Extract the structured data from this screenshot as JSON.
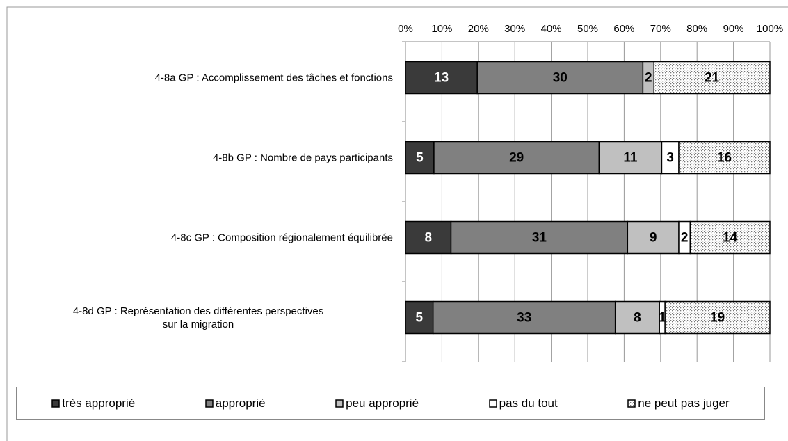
{
  "chart_data": {
    "type": "bar",
    "orientation": "horizontal",
    "stacking": "percent",
    "categories": [
      "4-8a GP : Accomplissement des tâches et fonctions",
      "4-8b GP : Nombre de pays participants",
      "4-8c GP : Composition régionalement équilibrée",
      "4-8d GP : Représentation des différentes perspectives\nsur la migration"
    ],
    "series": [
      {
        "name": "très approprié",
        "color": "#3a3a3a",
        "label_color": "#ffffff",
        "values": [
          13,
          5,
          8,
          5
        ]
      },
      {
        "name": "approprié",
        "color": "#808080",
        "label_color": "#000000",
        "values": [
          30,
          29,
          31,
          33
        ]
      },
      {
        "name": "peu approprié",
        "color": "#c0c0c0",
        "label_color": "#000000",
        "values": [
          2,
          11,
          9,
          8
        ]
      },
      {
        "name": "pas du tout",
        "color": "#ffffff",
        "label_color": "#000000",
        "values": [
          null,
          3,
          2,
          1
        ]
      },
      {
        "name": "ne peut pas juger",
        "color": "#ffffff",
        "pattern": "dots",
        "label_color": "#000000",
        "values": [
          21,
          16,
          14,
          19
        ]
      }
    ],
    "xlim": [
      0,
      100
    ],
    "xticks": [
      {
        "value": 0,
        "label": "0%"
      },
      {
        "value": 10,
        "label": "10%"
      },
      {
        "value": 20,
        "label": "20%"
      },
      {
        "value": 30,
        "label": "30%"
      },
      {
        "value": 40,
        "label": "40%"
      },
      {
        "value": 50,
        "label": "50%"
      },
      {
        "value": 60,
        "label": "60%"
      },
      {
        "value": 70,
        "label": "70%"
      },
      {
        "value": 80,
        "label": "80%"
      },
      {
        "value": 90,
        "label": "90%"
      },
      {
        "value": 100,
        "label": "100%"
      }
    ],
    "grid": true,
    "legend": "bottom"
  }
}
